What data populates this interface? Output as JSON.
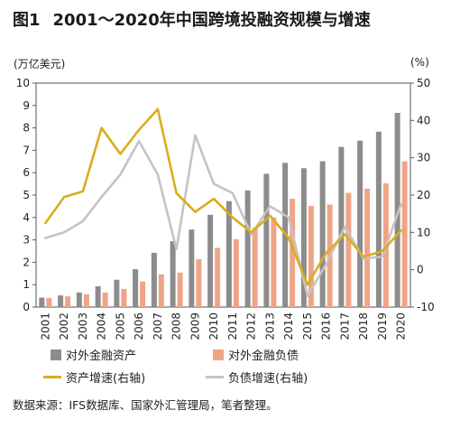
{
  "figure": {
    "label": "图1",
    "title": "2001～2020年中国跨境投融资规模与增速",
    "left_unit": "(万亿美元)",
    "right_unit": "(%)",
    "source": "数据来源：IFS数据库、国家外汇管理局，笔者整理。"
  },
  "legend": {
    "assets_label": "对外金融资产",
    "liabilities_label": "对外金融负债",
    "asset_growth_label": "资产增速(右轴)",
    "liability_growth_label": "负债增速(右轴)"
  },
  "colors": {
    "assets": "#8c8c8c",
    "liabilities": "#f0a487",
    "asset_growth": "#d8ad1f",
    "liability_growth": "#c4c4c4"
  },
  "chart_data": {
    "type": "bar",
    "categories": [
      "2001",
      "2002",
      "2003",
      "2004",
      "2005",
      "2006",
      "2007",
      "2008",
      "2009",
      "2010",
      "2011",
      "2012",
      "2013",
      "2014",
      "2015",
      "2016",
      "2017",
      "2018",
      "2019",
      "2020"
    ],
    "ylim": [
      0,
      10
    ],
    "y2lim": [
      -10,
      50
    ],
    "yticks": [
      "0",
      "1",
      "2",
      "3",
      "4",
      "5",
      "6",
      "7",
      "8",
      "9",
      "10"
    ],
    "y2ticks": [
      "-10",
      "0",
      "10",
      "20",
      "30",
      "40",
      "50"
    ],
    "series": [
      {
        "name": "对外金融资产",
        "axis": "left",
        "kind": "bar",
        "values": [
          0.42,
          0.52,
          0.65,
          0.93,
          1.22,
          1.69,
          2.42,
          2.94,
          3.46,
          4.12,
          4.73,
          5.21,
          5.95,
          6.44,
          6.2,
          6.51,
          7.15,
          7.43,
          7.83,
          8.67
        ]
      },
      {
        "name": "对外金融负债",
        "axis": "left",
        "kind": "bar",
        "values": [
          0.41,
          0.48,
          0.57,
          0.65,
          0.81,
          1.14,
          1.46,
          1.54,
          2.14,
          2.64,
          3.03,
          3.54,
          4.0,
          4.84,
          4.52,
          4.58,
          5.1,
          5.29,
          5.53,
          6.51
        ]
      },
      {
        "name": "资产增速(右轴)",
        "axis": "right",
        "kind": "line",
        "values": [
          12.5,
          19.5,
          21.0,
          38.0,
          31.0,
          37.5,
          43.0,
          20.5,
          15.5,
          19.0,
          14.0,
          10.0,
          14.5,
          8.5,
          -4.0,
          4.5,
          9.5,
          3.5,
          5.0,
          10.5
        ]
      },
      {
        "name": "负债增速(右轴)",
        "axis": "right",
        "kind": "line",
        "values": [
          8.5,
          10.0,
          13.0,
          19.5,
          25.5,
          34.5,
          25.5,
          5.5,
          36.0,
          23.0,
          20.5,
          9.5,
          17.0,
          14.0,
          -7.0,
          1.5,
          11.5,
          3.0,
          3.5,
          17.5
        ]
      }
    ]
  }
}
